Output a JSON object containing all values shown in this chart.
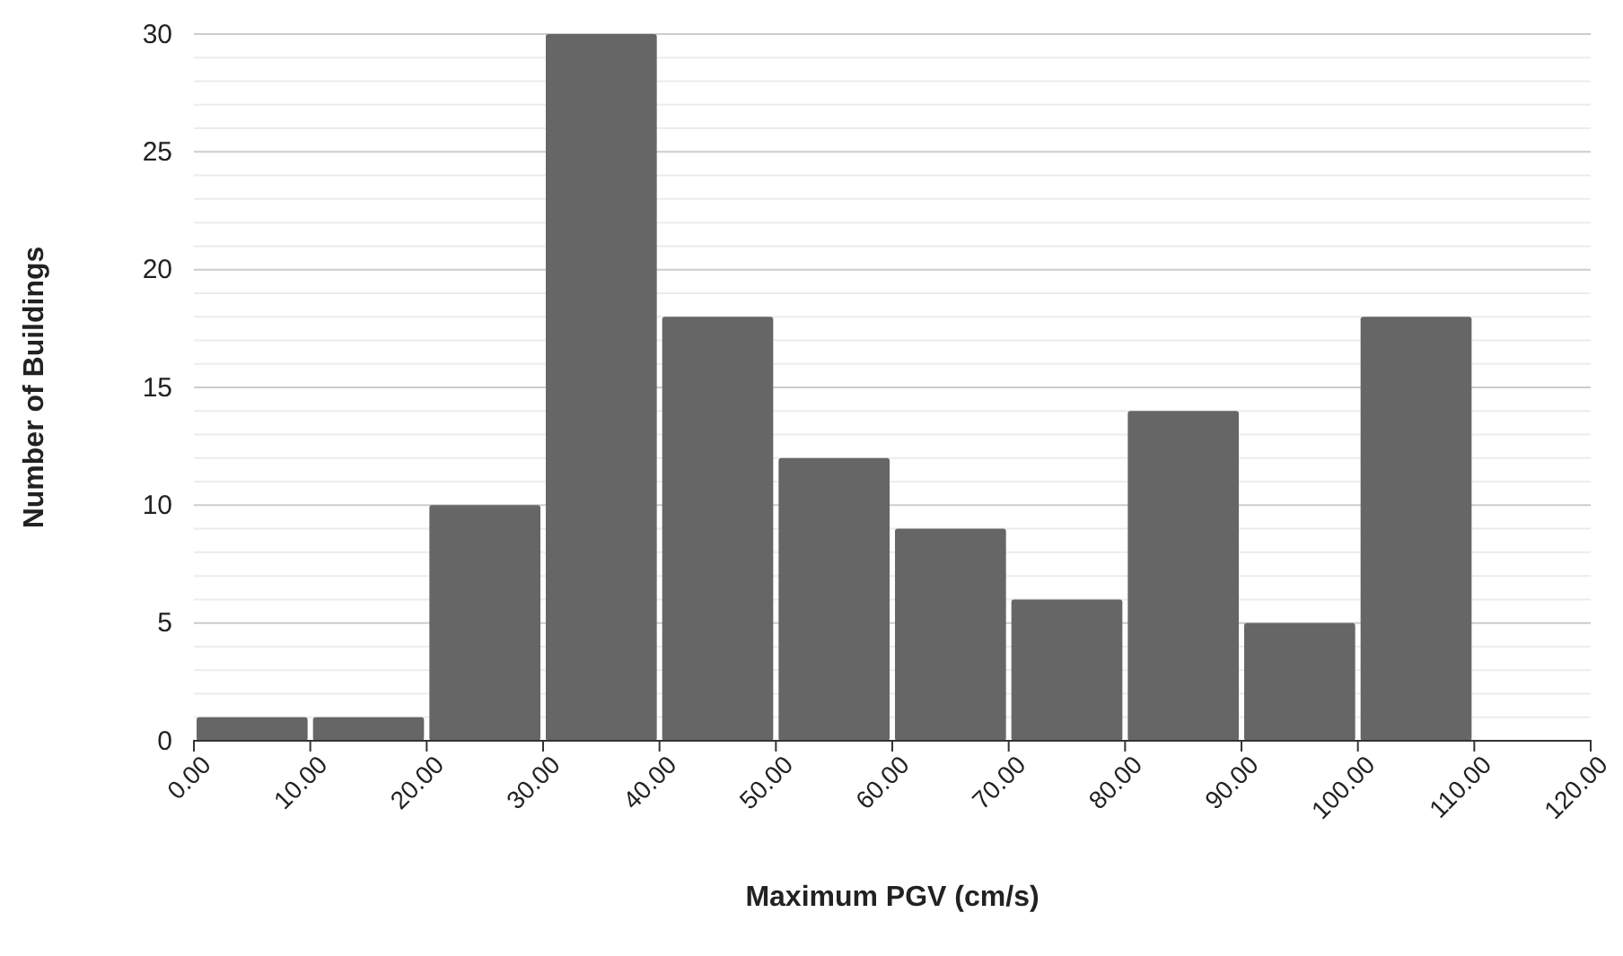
{
  "chart_data": {
    "type": "histogram",
    "xlabel": "Maximum PGV (cm/s)",
    "ylabel": "Number of Buildings",
    "bins": [
      0,
      10,
      20,
      30,
      40,
      50,
      60,
      70,
      80,
      90,
      100,
      110,
      120
    ],
    "values": [
      1,
      1,
      10,
      30,
      18,
      12,
      9,
      6,
      14,
      5,
      18,
      0
    ],
    "color": "#666666",
    "xlim": [
      0,
      120
    ],
    "xticks": [
      {
        "value": 0,
        "label": "0.00"
      },
      {
        "value": 10,
        "label": "10.00"
      },
      {
        "value": 20,
        "label": "20.00"
      },
      {
        "value": 30,
        "label": "30.00"
      },
      {
        "value": 40,
        "label": "40.00"
      },
      {
        "value": 50,
        "label": "50.00"
      },
      {
        "value": 60,
        "label": "60.00"
      },
      {
        "value": 70,
        "label": "70.00"
      },
      {
        "value": 80,
        "label": "80.00"
      },
      {
        "value": 90,
        "label": "90.00"
      },
      {
        "value": 100,
        "label": "100.00"
      },
      {
        "value": 110,
        "label": "110.00"
      },
      {
        "value": 120,
        "label": "120.00"
      }
    ],
    "ylim": [
      0,
      30
    ],
    "yticks": [
      0,
      5,
      10,
      15,
      20,
      25,
      30
    ],
    "grid": "y"
  }
}
